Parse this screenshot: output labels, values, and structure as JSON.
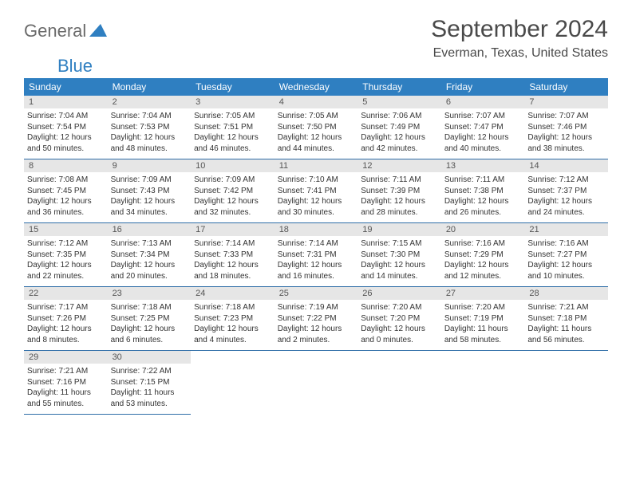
{
  "logo": {
    "text1": "General",
    "text2": "Blue"
  },
  "title": "September 2024",
  "location": "Everman, Texas, United States",
  "colors": {
    "header_bg": "#2f7fc1",
    "header_text": "#ffffff",
    "daynum_bg": "#e6e6e6",
    "cell_border": "#2f6ea8",
    "logo_gray": "#6b6b6b",
    "logo_blue": "#2f7fc1",
    "body_text": "#333333"
  },
  "week_headers": [
    "Sunday",
    "Monday",
    "Tuesday",
    "Wednesday",
    "Thursday",
    "Friday",
    "Saturday"
  ],
  "days": [
    {
      "n": 1,
      "sr": "7:04 AM",
      "ss": "7:54 PM",
      "dl": "12 hours and 50 minutes."
    },
    {
      "n": 2,
      "sr": "7:04 AM",
      "ss": "7:53 PM",
      "dl": "12 hours and 48 minutes."
    },
    {
      "n": 3,
      "sr": "7:05 AM",
      "ss": "7:51 PM",
      "dl": "12 hours and 46 minutes."
    },
    {
      "n": 4,
      "sr": "7:05 AM",
      "ss": "7:50 PM",
      "dl": "12 hours and 44 minutes."
    },
    {
      "n": 5,
      "sr": "7:06 AM",
      "ss": "7:49 PM",
      "dl": "12 hours and 42 minutes."
    },
    {
      "n": 6,
      "sr": "7:07 AM",
      "ss": "7:47 PM",
      "dl": "12 hours and 40 minutes."
    },
    {
      "n": 7,
      "sr": "7:07 AM",
      "ss": "7:46 PM",
      "dl": "12 hours and 38 minutes."
    },
    {
      "n": 8,
      "sr": "7:08 AM",
      "ss": "7:45 PM",
      "dl": "12 hours and 36 minutes."
    },
    {
      "n": 9,
      "sr": "7:09 AM",
      "ss": "7:43 PM",
      "dl": "12 hours and 34 minutes."
    },
    {
      "n": 10,
      "sr": "7:09 AM",
      "ss": "7:42 PM",
      "dl": "12 hours and 32 minutes."
    },
    {
      "n": 11,
      "sr": "7:10 AM",
      "ss": "7:41 PM",
      "dl": "12 hours and 30 minutes."
    },
    {
      "n": 12,
      "sr": "7:11 AM",
      "ss": "7:39 PM",
      "dl": "12 hours and 28 minutes."
    },
    {
      "n": 13,
      "sr": "7:11 AM",
      "ss": "7:38 PM",
      "dl": "12 hours and 26 minutes."
    },
    {
      "n": 14,
      "sr": "7:12 AM",
      "ss": "7:37 PM",
      "dl": "12 hours and 24 minutes."
    },
    {
      "n": 15,
      "sr": "7:12 AM",
      "ss": "7:35 PM",
      "dl": "12 hours and 22 minutes."
    },
    {
      "n": 16,
      "sr": "7:13 AM",
      "ss": "7:34 PM",
      "dl": "12 hours and 20 minutes."
    },
    {
      "n": 17,
      "sr": "7:14 AM",
      "ss": "7:33 PM",
      "dl": "12 hours and 18 minutes."
    },
    {
      "n": 18,
      "sr": "7:14 AM",
      "ss": "7:31 PM",
      "dl": "12 hours and 16 minutes."
    },
    {
      "n": 19,
      "sr": "7:15 AM",
      "ss": "7:30 PM",
      "dl": "12 hours and 14 minutes."
    },
    {
      "n": 20,
      "sr": "7:16 AM",
      "ss": "7:29 PM",
      "dl": "12 hours and 12 minutes."
    },
    {
      "n": 21,
      "sr": "7:16 AM",
      "ss": "7:27 PM",
      "dl": "12 hours and 10 minutes."
    },
    {
      "n": 22,
      "sr": "7:17 AM",
      "ss": "7:26 PM",
      "dl": "12 hours and 8 minutes."
    },
    {
      "n": 23,
      "sr": "7:18 AM",
      "ss": "7:25 PM",
      "dl": "12 hours and 6 minutes."
    },
    {
      "n": 24,
      "sr": "7:18 AM",
      "ss": "7:23 PM",
      "dl": "12 hours and 4 minutes."
    },
    {
      "n": 25,
      "sr": "7:19 AM",
      "ss": "7:22 PM",
      "dl": "12 hours and 2 minutes."
    },
    {
      "n": 26,
      "sr": "7:20 AM",
      "ss": "7:20 PM",
      "dl": "12 hours and 0 minutes."
    },
    {
      "n": 27,
      "sr": "7:20 AM",
      "ss": "7:19 PM",
      "dl": "11 hours and 58 minutes."
    },
    {
      "n": 28,
      "sr": "7:21 AM",
      "ss": "7:18 PM",
      "dl": "11 hours and 56 minutes."
    },
    {
      "n": 29,
      "sr": "7:21 AM",
      "ss": "7:16 PM",
      "dl": "11 hours and 55 minutes."
    },
    {
      "n": 30,
      "sr": "7:22 AM",
      "ss": "7:15 PM",
      "dl": "11 hours and 53 minutes."
    }
  ],
  "labels": {
    "sunrise": "Sunrise:",
    "sunset": "Sunset:",
    "daylight": "Daylight:"
  },
  "start_weekday": 0,
  "grid_cols": 7
}
